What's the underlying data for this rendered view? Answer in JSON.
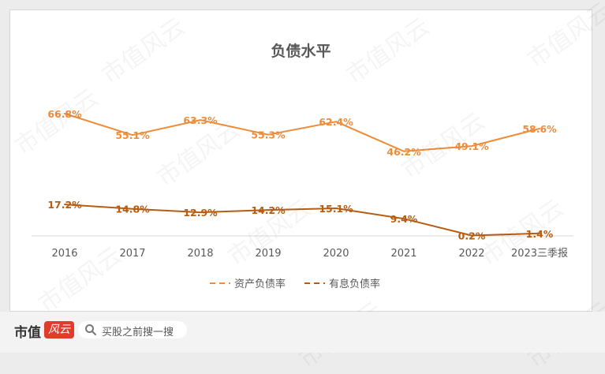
{
  "chart_data": {
    "type": "line",
    "title": "负债水平",
    "categories": [
      "2016",
      "2017",
      "2018",
      "2019",
      "2020",
      "2021",
      "2022",
      "2023三季报"
    ],
    "series": [
      {
        "name": "资产负债率",
        "values": [
          66.8,
          55.1,
          63.3,
          55.3,
          62.4,
          46.2,
          49.1,
          58.6
        ],
        "labels": [
          "66.8%",
          "55.1%",
          "63.3%",
          "55.3%",
          "62.4%",
          "46.2%",
          "49.1%",
          "58.6%"
        ],
        "color": "#ed8c3a",
        "dash": true
      },
      {
        "name": "有息负债率",
        "values": [
          17.2,
          14.8,
          12.9,
          14.2,
          15.1,
          9.4,
          0.2,
          1.4
        ],
        "labels": [
          "17.2%",
          "14.8%",
          "12.9%",
          "14.2%",
          "15.1%",
          "9.4%",
          "0.2%",
          "1.4%"
        ],
        "color": "#b65d12",
        "dash": true
      }
    ],
    "ylim": [
      0,
      80
    ],
    "grid": false,
    "legend": "bottom"
  },
  "watermark": "市值风云",
  "footer": {
    "brand": "市值",
    "badge": "风云",
    "search_placeholder": "买股之前搜一搜",
    "icon": "search-icon"
  }
}
